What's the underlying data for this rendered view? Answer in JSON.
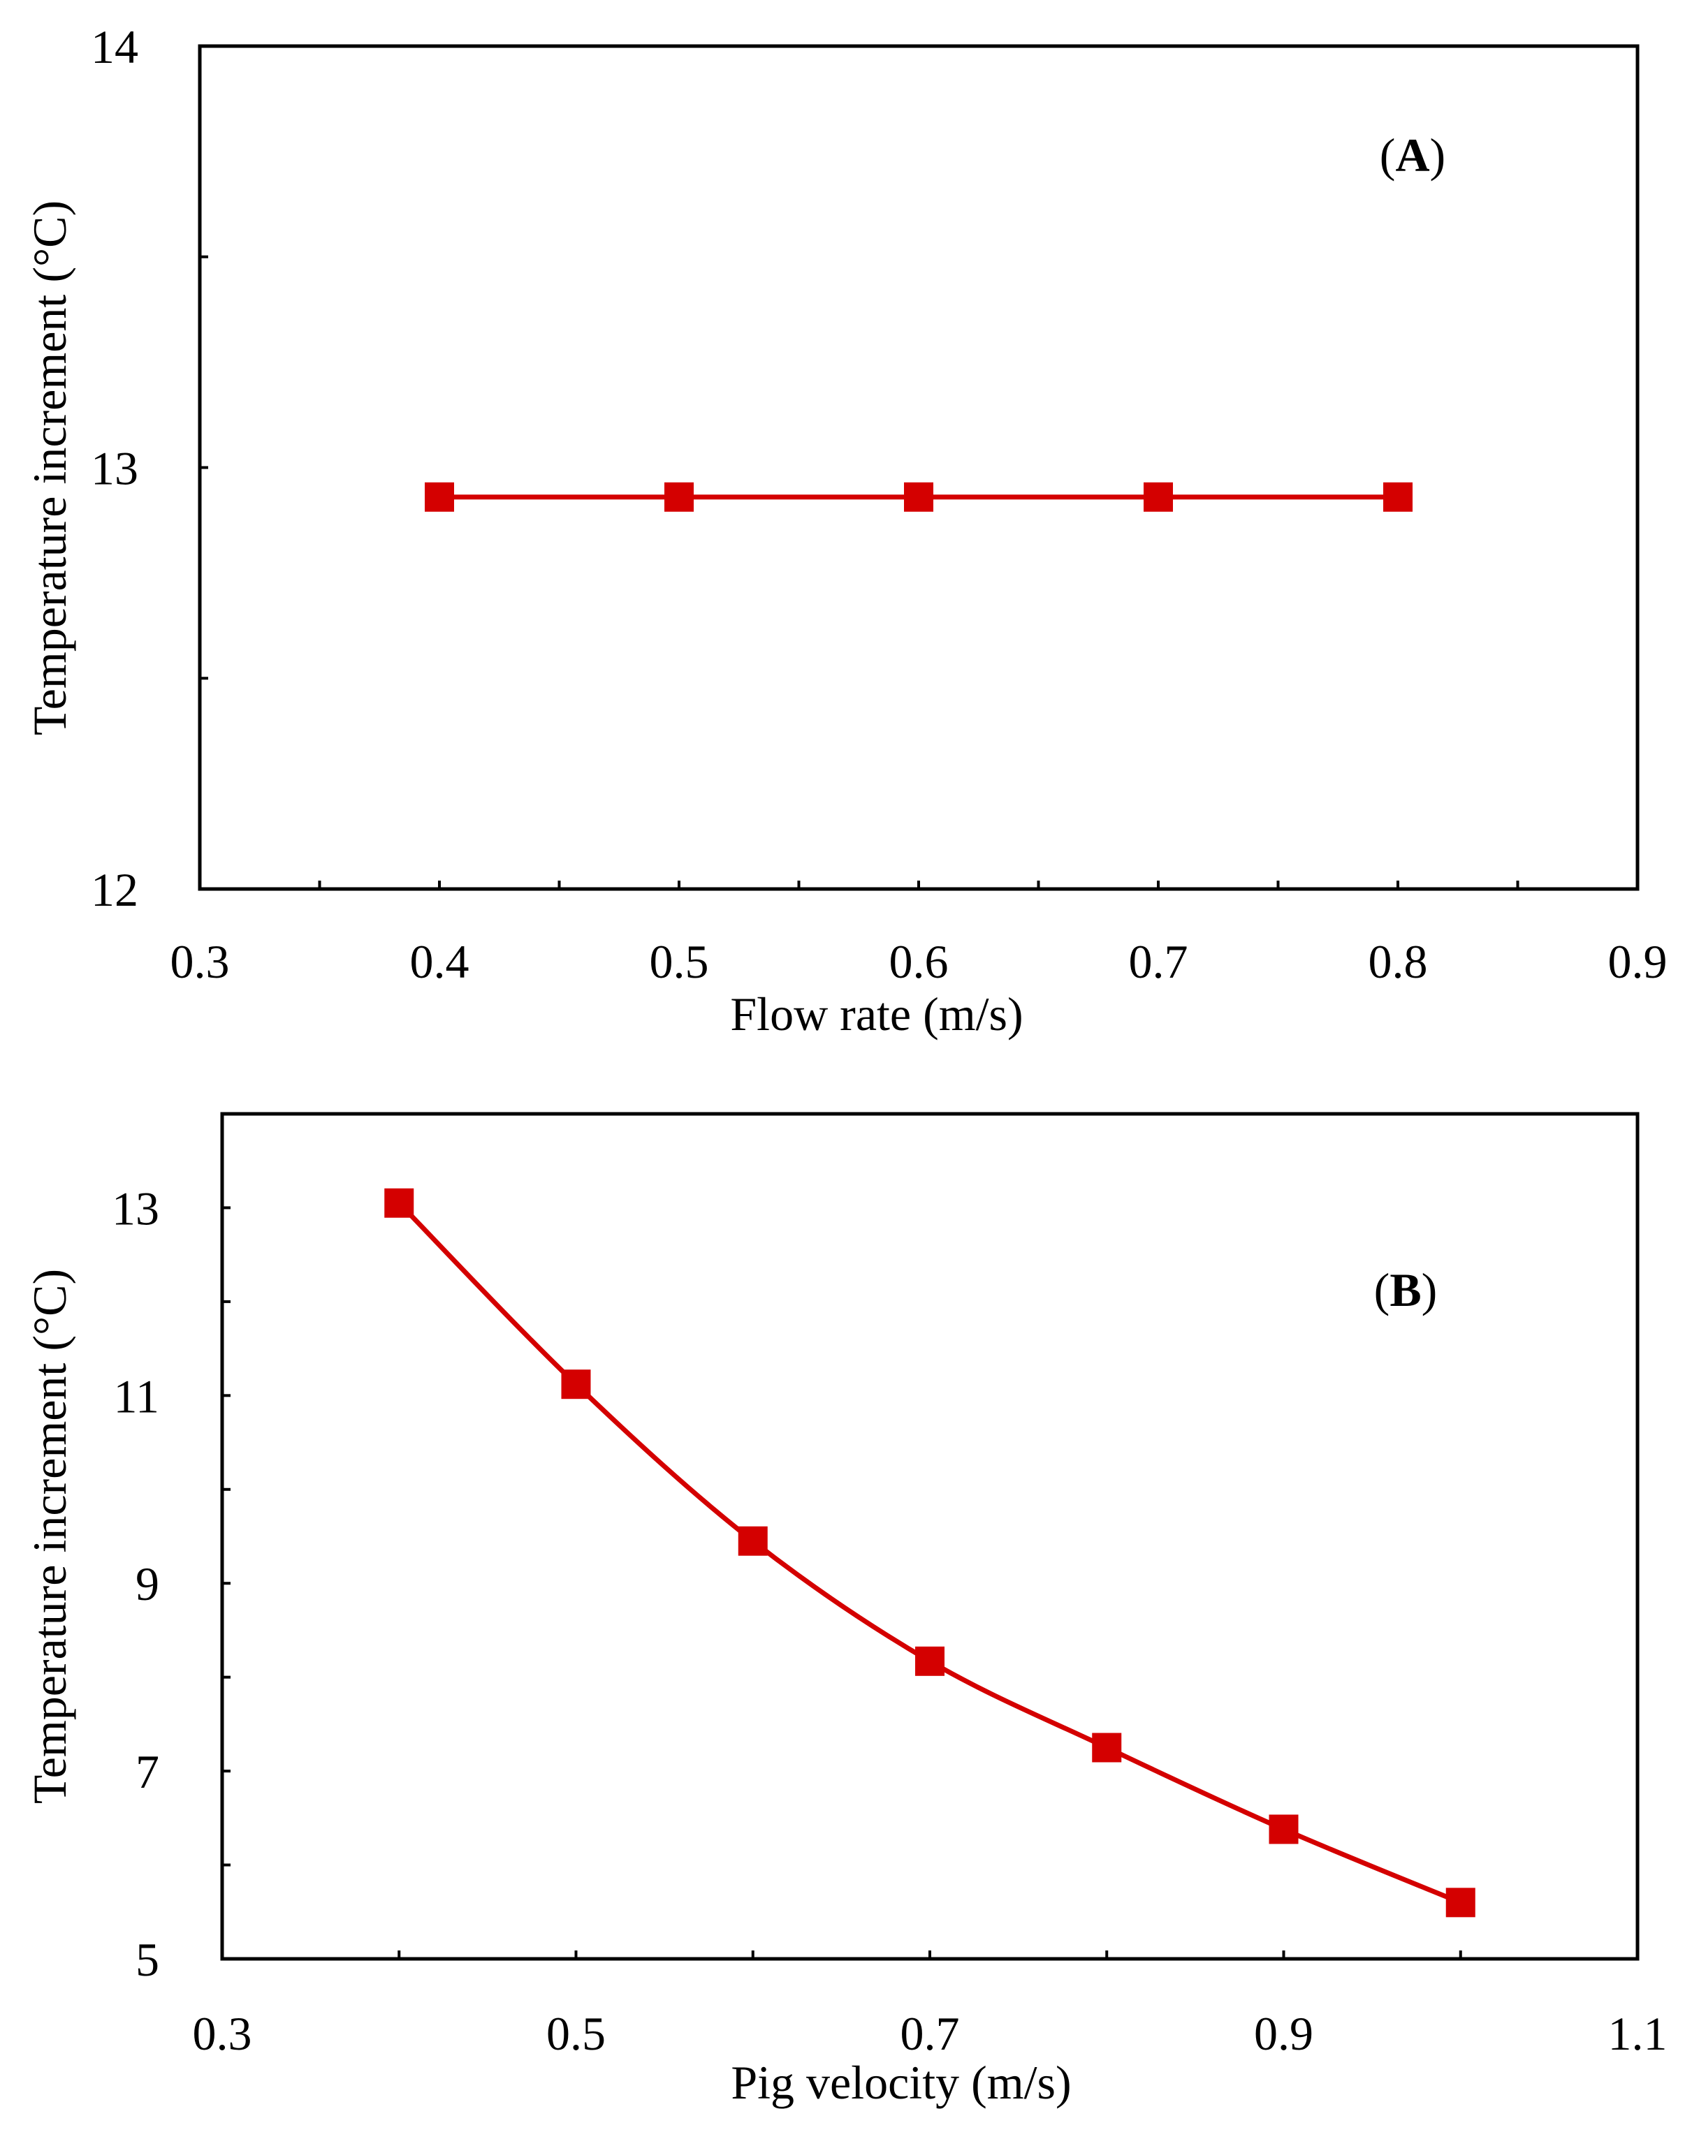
{
  "chart_data": [
    {
      "type": "line",
      "panel": "A",
      "panel_label": "A",
      "xlabel": "Flow rate (m/s)",
      "ylabel": "Temperature increment (°C)",
      "xlim": [
        0.3,
        0.9
      ],
      "ylim": [
        12,
        14
      ],
      "xticks": [
        0.3,
        0.4,
        0.5,
        0.6,
        0.7,
        0.8,
        0.9
      ],
      "xtick_labels": [
        "0.3",
        "0.4",
        "0.5",
        "0.6",
        "0.7",
        "0.8",
        "0.9"
      ],
      "x_minor_ticks": [
        0.35,
        0.45,
        0.55,
        0.65,
        0.75,
        0.85
      ],
      "yticks": [
        12,
        13,
        14
      ],
      "ytick_labels": [
        "12",
        "13",
        "14"
      ],
      "y_minor_ticks": [
        12.5,
        13.5
      ],
      "legend": "none",
      "grid": false,
      "series": [
        {
          "name": "Temperature increment",
          "color": "#d40000",
          "marker": "square",
          "x": [
            0.4,
            0.5,
            0.6,
            0.7,
            0.8
          ],
          "y": [
            12.93,
            12.93,
            12.93,
            12.93,
            12.93
          ]
        }
      ]
    },
    {
      "type": "line",
      "panel": "B",
      "panel_label": "B",
      "xlabel": "Pig velocity (m/s)",
      "ylabel": "Temperature increment (°C)",
      "xlim": [
        0.3,
        1.1
      ],
      "ylim": [
        5,
        14
      ],
      "xticks": [
        0.3,
        0.5,
        0.7,
        0.9,
        1.1
      ],
      "xtick_labels": [
        "0.3",
        "0.5",
        "0.7",
        "0.9",
        "1.1"
      ],
      "x_minor_ticks": [
        0.4,
        0.6,
        0.8,
        1.0
      ],
      "yticks": [
        5,
        7,
        9,
        11,
        13
      ],
      "ytick_labels": [
        "5",
        "7",
        "9",
        "11",
        "13"
      ],
      "y_minor_ticks": [
        6,
        8,
        10,
        12
      ],
      "legend": "none",
      "grid": false,
      "series": [
        {
          "name": "Temperature increment",
          "color": "#d40000",
          "marker": "square",
          "x": [
            0.4,
            0.5,
            0.6,
            0.7,
            0.8,
            0.9,
            1.0
          ],
          "y": [
            13.05,
            11.12,
            9.45,
            8.17,
            7.25,
            6.38,
            5.6
          ]
        }
      ]
    }
  ]
}
